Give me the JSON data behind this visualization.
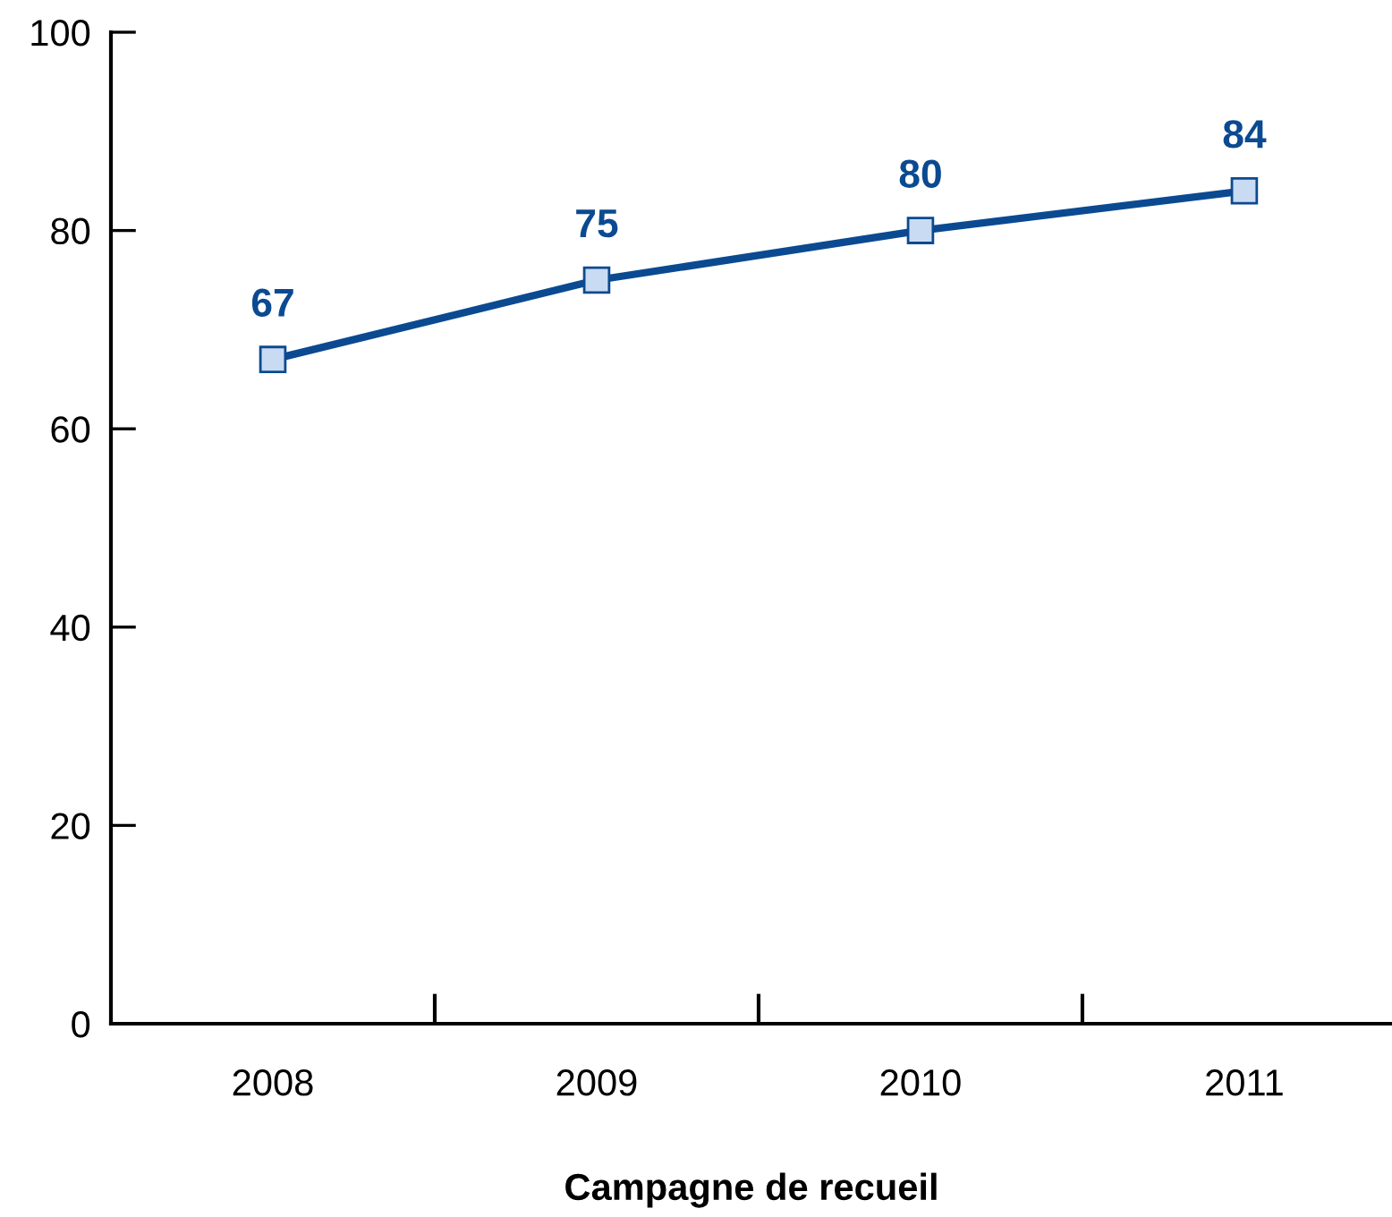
{
  "chart_data": {
    "type": "line",
    "xlabel": "Campagne de recueil",
    "categories": [
      "2008",
      "2009",
      "2010",
      "2011"
    ],
    "series": [
      {
        "color": "#0b4a91",
        "values": [
          67,
          75,
          80,
          84
        ]
      }
    ],
    "marker": "square",
    "line_style": "solid",
    "data_labels": true,
    "grid": false,
    "legend": false,
    "ylim": [
      0,
      100
    ],
    "yticks": [
      0,
      20,
      40,
      60,
      80,
      100
    ]
  }
}
